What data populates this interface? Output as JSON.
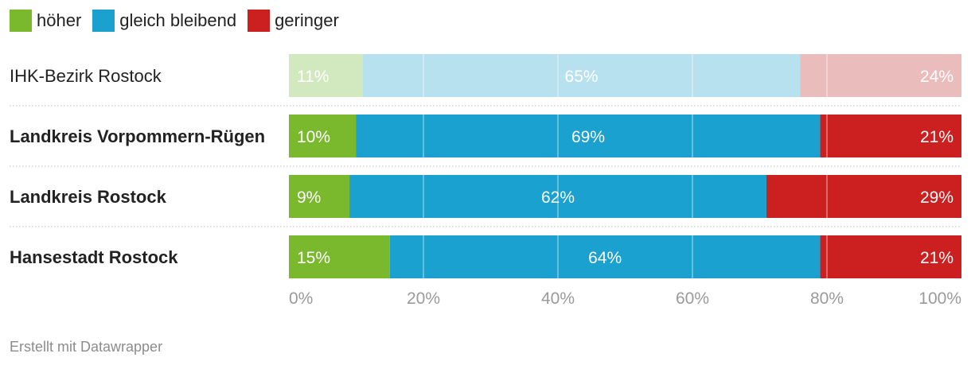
{
  "legend": [
    {
      "label": "höher",
      "color": "#7ab92e"
    },
    {
      "label": "gleich bleibend",
      "color": "#1aa1cf"
    },
    {
      "label": "geringer",
      "color": "#cc2020"
    }
  ],
  "footer": "Erstellt mit Datawrapper",
  "chart_data": {
    "type": "bar",
    "orientation": "horizontal",
    "stacked": true,
    "categories": [
      "IHK-Bezirk Rostock",
      "Landkreis Vorpommern-Rügen",
      "Landkreis Rostock",
      "Hansestadt Rostock"
    ],
    "highlighted": [
      false,
      true,
      true,
      true
    ],
    "series": [
      {
        "name": "höher",
        "values": [
          11,
          10,
          9,
          15
        ],
        "labels": [
          "11%",
          "10%",
          "9%",
          "15%"
        ]
      },
      {
        "name": "gleich bleibend",
        "values": [
          65,
          69,
          62,
          64
        ],
        "labels": [
          "65%",
          "69%",
          "62%",
          "64%"
        ]
      },
      {
        "name": "geringer",
        "values": [
          24,
          21,
          29,
          21
        ],
        "labels": [
          "24%",
          "21%",
          "29%",
          "21%"
        ]
      }
    ],
    "series_colors": [
      "#7ab92e",
      "#1aa1cf",
      "#cc2020"
    ],
    "series_colors_muted": [
      "#d2e8bf",
      "#b8e1ef",
      "#ebbcbc"
    ],
    "xlim": [
      0,
      100
    ],
    "xticks": [
      0,
      20,
      40,
      60,
      80,
      100
    ],
    "xtick_labels": [
      "0%",
      "20%",
      "40%",
      "60%",
      "80%",
      "100%"
    ],
    "grid": true,
    "legend_position": "top-left"
  }
}
